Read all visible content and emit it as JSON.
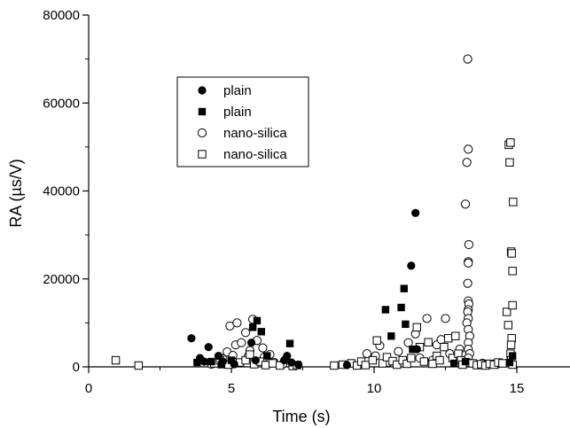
{
  "chart_data": {
    "type": "scatter",
    "xlabel": "Time (s)",
    "ylabel": "RA (µs/V)",
    "xlim": [
      0,
      17
    ],
    "ylim": [
      0,
      80000
    ],
    "x_ticks": [
      "0",
      "5",
      "10",
      "15"
    ],
    "y_ticks": [
      "0",
      "20000",
      "40000",
      "60000",
      "80000"
    ],
    "grid": false,
    "legend_position": "upper-left",
    "series": [
      {
        "name": "plain",
        "marker": "filled-circle",
        "color": "#000000",
        "points": [
          [
            3.6,
            6500
          ],
          [
            3.9,
            2000
          ],
          [
            4.05,
            1200
          ],
          [
            4.2,
            4500
          ],
          [
            4.55,
            2500
          ],
          [
            4.7,
            1200
          ],
          [
            5.1,
            600
          ],
          [
            5.7,
            5500
          ],
          [
            5.85,
            1500
          ],
          [
            6.85,
            1500
          ],
          [
            6.95,
            2500
          ],
          [
            7.1,
            1000
          ],
          [
            7.35,
            500
          ],
          [
            9.05,
            400
          ],
          [
            11.3,
            23000
          ],
          [
            11.45,
            35000
          ],
          [
            11.5,
            4000
          ]
        ]
      },
      {
        "name": "plain",
        "marker": "filled-square",
        "color": "#000000",
        "points": [
          [
            3.8,
            1000
          ],
          [
            4.3,
            1200
          ],
          [
            4.65,
            500
          ],
          [
            5.0,
            1500
          ],
          [
            5.75,
            9000
          ],
          [
            5.9,
            10500
          ],
          [
            6.05,
            8000
          ],
          [
            6.25,
            2500
          ],
          [
            7.05,
            5300
          ],
          [
            10.4,
            13000
          ],
          [
            10.6,
            7000
          ],
          [
            10.95,
            13500
          ],
          [
            11.05,
            17800
          ],
          [
            11.1,
            9700
          ],
          [
            11.35,
            4000
          ],
          [
            12.8,
            800
          ],
          [
            13.2,
            1200
          ],
          [
            14.75,
            1000
          ],
          [
            14.85,
            2500
          ]
        ]
      },
      {
        "name": "nano-silica",
        "marker": "open-circle",
        "color": "#000000",
        "points": [
          [
            4.3,
            600
          ],
          [
            4.7,
            1800
          ],
          [
            4.85,
            3400
          ],
          [
            4.95,
            9300
          ],
          [
            5.05,
            2600
          ],
          [
            5.15,
            5000
          ],
          [
            5.2,
            10000
          ],
          [
            5.35,
            5500
          ],
          [
            5.5,
            7800
          ],
          [
            5.6,
            2500
          ],
          [
            5.65,
            3700
          ],
          [
            5.75,
            10800
          ],
          [
            5.9,
            6000
          ],
          [
            6.1,
            4300
          ],
          [
            6.15,
            2200
          ],
          [
            6.35,
            2800
          ],
          [
            6.5,
            1000
          ],
          [
            6.8,
            600
          ],
          [
            9.75,
            3000
          ],
          [
            10.05,
            2500
          ],
          [
            10.2,
            4800
          ],
          [
            10.5,
            1000
          ],
          [
            10.85,
            3500
          ],
          [
            11.2,
            5500
          ],
          [
            11.45,
            7500
          ],
          [
            11.6,
            2000
          ],
          [
            11.85,
            11000
          ],
          [
            12.05,
            1500
          ],
          [
            12.2,
            5000
          ],
          [
            12.35,
            6200
          ],
          [
            12.5,
            11000
          ],
          [
            12.65,
            3000
          ],
          [
            12.8,
            1500
          ],
          [
            13.0,
            4000
          ],
          [
            13.2,
            37000
          ],
          [
            13.25,
            46500
          ],
          [
            13.28,
            70000
          ],
          [
            13.3,
            49500
          ],
          [
            13.32,
            27800
          ],
          [
            13.3,
            23900
          ],
          [
            13.3,
            23600
          ],
          [
            13.28,
            19000
          ],
          [
            13.3,
            15000
          ],
          [
            13.32,
            14300
          ],
          [
            13.3,
            13000
          ],
          [
            13.28,
            12500
          ],
          [
            13.3,
            11000
          ],
          [
            13.25,
            10000
          ],
          [
            13.3,
            8500
          ],
          [
            13.35,
            7000
          ],
          [
            13.3,
            5500
          ],
          [
            13.3,
            4000
          ],
          [
            13.35,
            3000
          ],
          [
            13.3,
            2000
          ],
          [
            13.3,
            1000
          ],
          [
            13.8,
            800
          ],
          [
            14.3,
            600
          ]
        ]
      },
      {
        "name": "nano-silica",
        "marker": "open-square",
        "color": "#000000",
        "points": [
          [
            0.95,
            1500
          ],
          [
            1.75,
            300
          ],
          [
            4.4,
            800
          ],
          [
            4.6,
            1500
          ],
          [
            4.9,
            500
          ],
          [
            5.3,
            1000
          ],
          [
            5.5,
            1500
          ],
          [
            5.65,
            2800
          ],
          [
            5.8,
            600
          ],
          [
            6.0,
            1200
          ],
          [
            6.2,
            400
          ],
          [
            6.45,
            800
          ],
          [
            6.7,
            300
          ],
          [
            7.15,
            200
          ],
          [
            7.3,
            400
          ],
          [
            8.6,
            300
          ],
          [
            8.9,
            500
          ],
          [
            9.2,
            800
          ],
          [
            9.4,
            300
          ],
          [
            9.55,
            1200
          ],
          [
            9.7,
            400
          ],
          [
            9.95,
            1500
          ],
          [
            10.1,
            6000
          ],
          [
            10.3,
            800
          ],
          [
            10.45,
            2200
          ],
          [
            10.65,
            1300
          ],
          [
            10.8,
            500
          ],
          [
            11.0,
            1500
          ],
          [
            11.15,
            700
          ],
          [
            11.3,
            2000
          ],
          [
            11.5,
            9000
          ],
          [
            11.6,
            4500
          ],
          [
            11.75,
            1200
          ],
          [
            11.9,
            5600
          ],
          [
            12.05,
            700
          ],
          [
            12.2,
            2500
          ],
          [
            12.3,
            1500
          ],
          [
            12.45,
            4500
          ],
          [
            12.6,
            6500
          ],
          [
            12.75,
            2000
          ],
          [
            12.85,
            7000
          ],
          [
            12.95,
            3000
          ],
          [
            13.05,
            1500
          ],
          [
            13.1,
            500
          ],
          [
            13.45,
            800
          ],
          [
            13.6,
            400
          ],
          [
            13.75,
            600
          ],
          [
            13.9,
            300
          ],
          [
            14.05,
            700
          ],
          [
            14.2,
            500
          ],
          [
            14.35,
            1000
          ],
          [
            14.5,
            800
          ],
          [
            14.65,
            12500
          ],
          [
            14.7,
            9500
          ],
          [
            14.72,
            50500
          ],
          [
            14.75,
            46500
          ],
          [
            14.78,
            51000
          ],
          [
            14.8,
            26200
          ],
          [
            14.82,
            25800
          ],
          [
            14.85,
            21800
          ],
          [
            14.87,
            37500
          ],
          [
            14.85,
            14000
          ],
          [
            14.82,
            6500
          ],
          [
            14.8,
            5000
          ],
          [
            14.78,
            3000
          ],
          [
            14.8,
            1500
          ],
          [
            14.85,
            500
          ]
        ]
      }
    ]
  }
}
